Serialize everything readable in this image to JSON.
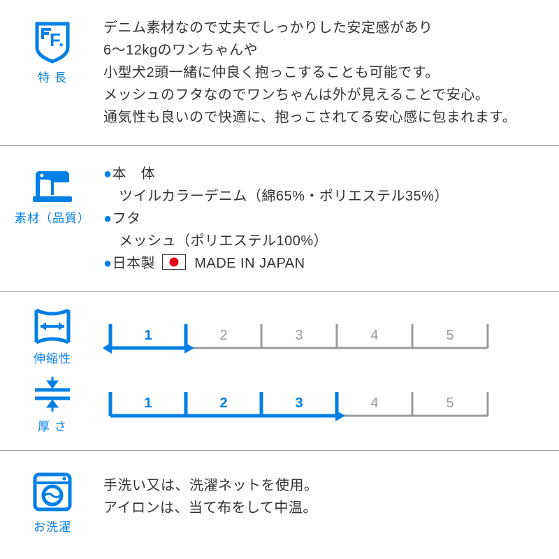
{
  "colors": {
    "accent": "#007fe6",
    "text": "#333333",
    "muted": "#9a9a9a",
    "flag_red": "#e60012"
  },
  "features": {
    "label": "特 長",
    "lines": [
      "デニム素材なので丈夫でしっかりした安定感があり",
      "6〜12kgのワンちゃんや",
      "小型犬2頭一緒に仲良く抱っこすることも可能です。",
      "メッシュのフタなのでワンちゃんは外が見えることで安心。",
      "通気性も良いので快適に、抱っこされてる安心感に包まれます。"
    ]
  },
  "material": {
    "label": "素材（品質）",
    "body_title": "本　体",
    "body_text": "ツイルカラーデニム（綿65%・ポリエステル35%）",
    "lid_title": "フタ",
    "lid_text": "メッシュ（ポリエステル100%）",
    "made_title": "日本製",
    "made_text": "MADE IN JAPAN"
  },
  "scales": {
    "max": 5,
    "stretch": {
      "label": "伸縮性",
      "value": 1,
      "show_left_arrow": true
    },
    "thickness": {
      "label": "厚 さ",
      "value": 3,
      "show_left_arrow": false
    }
  },
  "wash": {
    "label": "お洗濯",
    "line1": "手洗い又は、洗濯ネットを使用。",
    "line2": "アイロンは、当て布をして中温。"
  }
}
